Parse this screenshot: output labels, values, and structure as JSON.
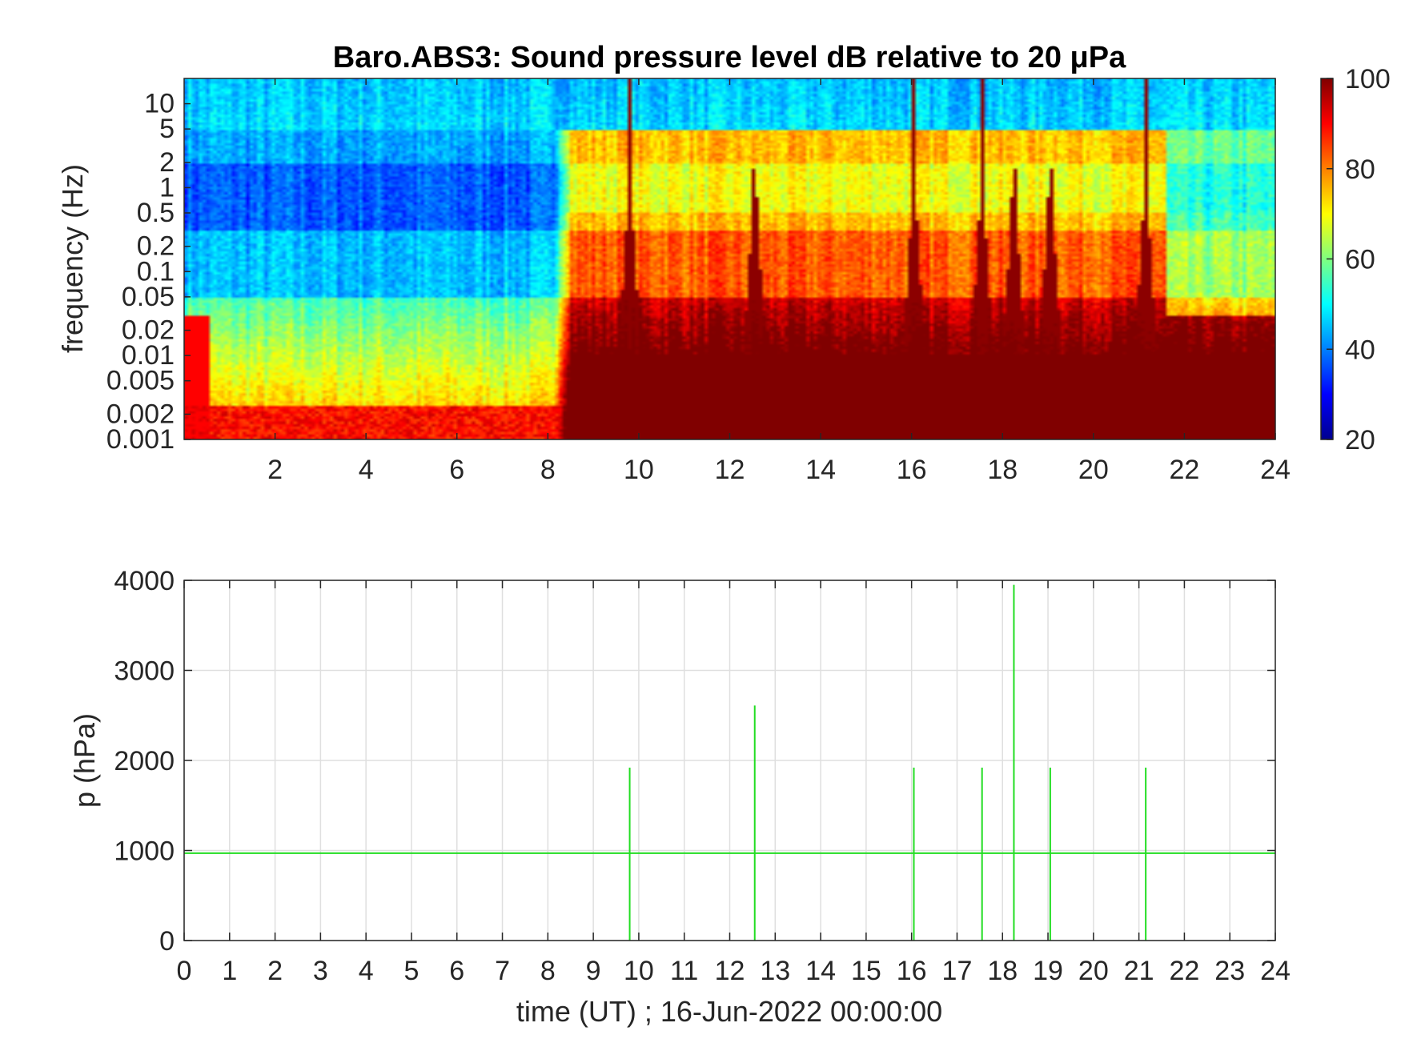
{
  "chart_data": [
    {
      "type": "heatmap",
      "title": "Baro.ABS3: Sound pressure level dB relative to 20 μPa",
      "xlabel": "",
      "ylabel": "frequency (Hz)",
      "xlim": [
        0,
        24
      ],
      "x_ticks": [
        2,
        4,
        6,
        8,
        10,
        12,
        14,
        16,
        18,
        20,
        22,
        24
      ],
      "x_tick_labels": [
        "2",
        "4",
        "6",
        "8",
        "10",
        "12",
        "14",
        "16",
        "18",
        "20",
        "22",
        "24"
      ],
      "y_scale": "log",
      "ylim": [
        0.001,
        20
      ],
      "y_ticks": [
        0.001,
        0.002,
        0.005,
        0.01,
        0.02,
        0.05,
        0.1,
        0.2,
        0.5,
        1,
        2,
        5,
        10
      ],
      "y_tick_labels": [
        "0.001",
        "0.002",
        "0.005",
        "0.01",
        "0.02",
        "0.05",
        "0.1",
        "0.2",
        "0.5",
        "1",
        "2",
        "5",
        "10"
      ],
      "colorbar": {
        "colormap": "jet",
        "range": [
          20,
          100
        ],
        "ticks": [
          20,
          40,
          60,
          80,
          100
        ],
        "tick_labels": [
          "20",
          "40",
          "60",
          "80",
          "100"
        ]
      },
      "quiet_period_hours": [
        0,
        8.1
      ],
      "active_period_hours": [
        8.1,
        24
      ],
      "impulse_times_hours": [
        9.8,
        12.55,
        16.05,
        17.55,
        18.25,
        19.05,
        21.15
      ]
    },
    {
      "type": "line",
      "title": "",
      "xlabel": "time (UT) ; 16-Jun-2022 00:00:00",
      "ylabel": "p (hPa)",
      "xlim": [
        0,
        24
      ],
      "ylim": [
        0,
        4000
      ],
      "x_ticks": [
        0,
        1,
        2,
        3,
        4,
        5,
        6,
        7,
        8,
        9,
        10,
        11,
        12,
        13,
        14,
        15,
        16,
        17,
        18,
        19,
        20,
        21,
        22,
        23,
        24
      ],
      "x_tick_labels": [
        "0",
        "1",
        "2",
        "3",
        "4",
        "5",
        "6",
        "7",
        "8",
        "9",
        "10",
        "11",
        "12",
        "13",
        "14",
        "15",
        "16",
        "17",
        "18",
        "19",
        "20",
        "21",
        "22",
        "23",
        "24"
      ],
      "y_ticks": [
        0,
        1000,
        2000,
        3000,
        4000
      ],
      "y_tick_labels": [
        "0",
        "1000",
        "2000",
        "3000",
        "4000"
      ],
      "grid": true,
      "line_color": "#22dd22",
      "baseline_hpa": 970,
      "spikes": [
        {
          "t": 9.8,
          "max": 1920,
          "min": 0
        },
        {
          "t": 12.55,
          "max": 2610,
          "min": 0
        },
        {
          "t": 16.05,
          "max": 1920,
          "min": 0
        },
        {
          "t": 17.55,
          "max": 1920,
          "min": 0
        },
        {
          "t": 18.25,
          "max": 3950,
          "min": 0
        },
        {
          "t": 19.05,
          "max": 1920,
          "min": 0
        },
        {
          "t": 21.15,
          "max": 1920,
          "min": 0
        }
      ]
    }
  ]
}
